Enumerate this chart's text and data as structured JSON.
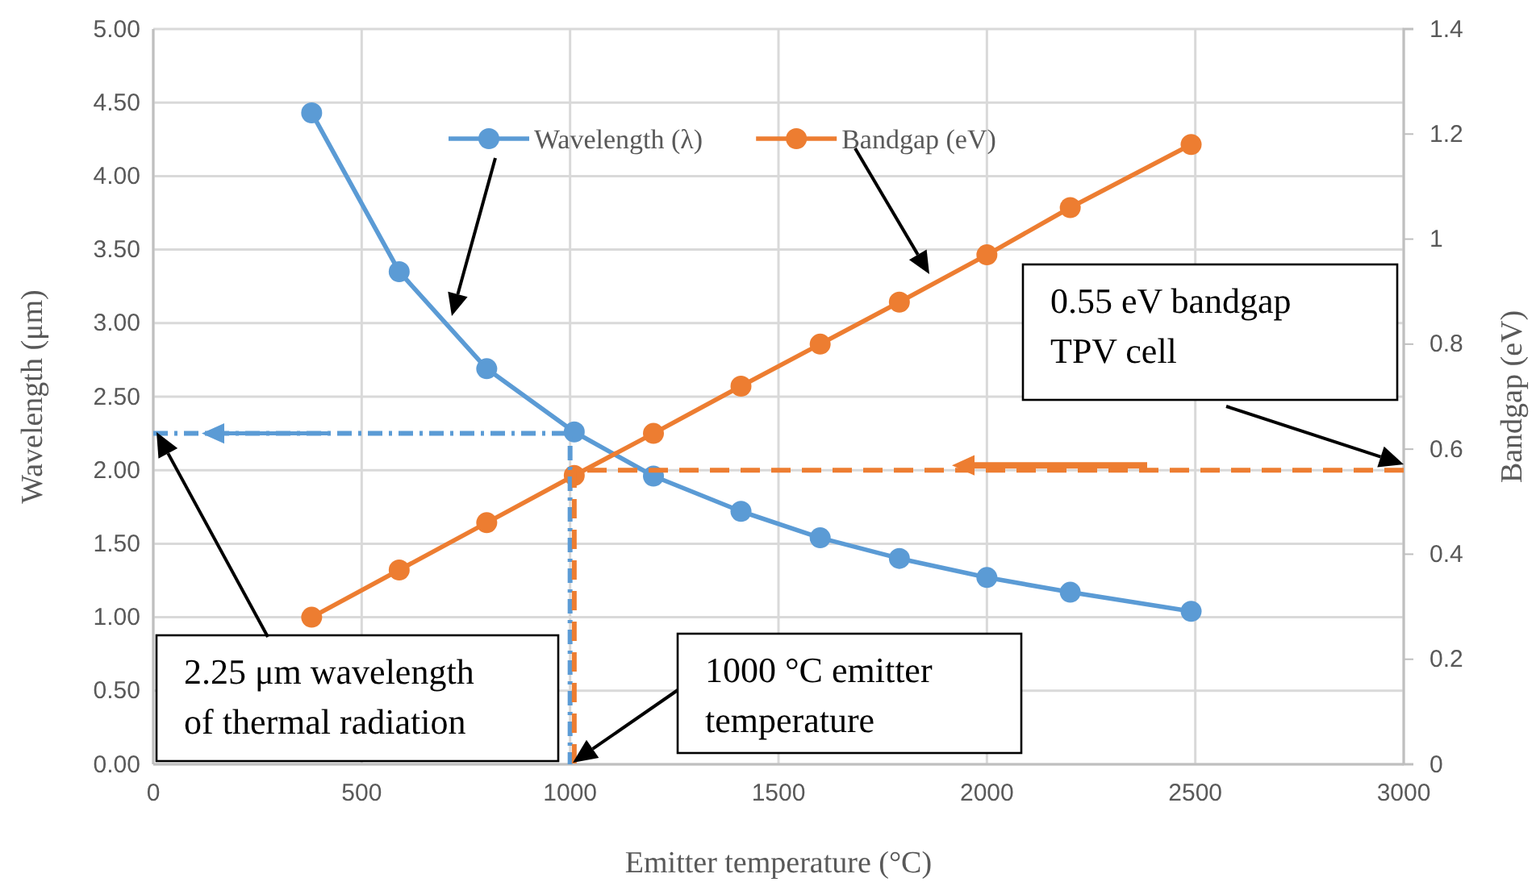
{
  "chart_data": {
    "type": "line",
    "xlabel": "Emitter temperature (°C)",
    "ylabel": "Wavelength (μm)",
    "y2label": "Bandgap (eV)",
    "x": [
      380,
      590,
      800,
      1010,
      1200,
      1410,
      1600,
      1790,
      2000,
      2200,
      2490
    ],
    "series": [
      {
        "name": "Wavelength (λ)",
        "color": "#5b9bd5",
        "values": [
          4.43,
          3.35,
          2.69,
          2.26,
          1.96,
          1.72,
          1.54,
          1.4,
          1.27,
          1.17,
          1.04
        ]
      },
      {
        "name": "Bandgap (eV)",
        "color": "#ed7d31",
        "axis": "y2",
        "values": [
          0.28,
          0.37,
          0.46,
          0.55,
          0.63,
          0.72,
          0.8,
          0.88,
          0.97,
          1.06,
          1.18
        ]
      },
      {
        "color": "#5b9bd5",
        "x": [
          0,
          1000,
          1000
        ],
        "values": [
          2.25,
          2.25,
          0
        ],
        "marker": "none",
        "line_style": "dotted"
      },
      {
        "color": "#ed7d31",
        "axis": "y2",
        "x": [
          3000,
          1010,
          1010
        ],
        "values": [
          0.56,
          0.56,
          0
        ],
        "marker": "none",
        "line_style": "dashed"
      }
    ],
    "xlim": [
      0,
      3000
    ],
    "xticks": [
      0,
      500,
      1000,
      1500,
      2000,
      2500,
      3000
    ],
    "ylim": [
      0,
      5
    ],
    "yticks": [
      {
        "value": 0,
        "label": "0.00"
      },
      {
        "value": 0.5,
        "label": "0.50"
      },
      {
        "value": 1,
        "label": "1.00"
      },
      {
        "value": 1.5,
        "label": "1.50"
      },
      {
        "value": 2,
        "label": "2.00"
      },
      {
        "value": 2.5,
        "label": "2.50"
      },
      {
        "value": 3,
        "label": "3.00"
      },
      {
        "value": 3.5,
        "label": "3.50"
      },
      {
        "value": 4,
        "label": "4.00"
      },
      {
        "value": 4.5,
        "label": "4.50"
      },
      {
        "value": 5,
        "label": "5.00"
      }
    ],
    "y2lim": [
      0,
      1.4
    ],
    "y2ticks": [
      0,
      0.2,
      0.4,
      0.6,
      0.8,
      1,
      1.2,
      1.4
    ],
    "grid": true,
    "legend": "top",
    "marker": "circle",
    "line_style": "solid",
    "annotations": [
      "2.25 μm wavelength\nof thermal radiation",
      "1000 °C emitter\ntemperature",
      "0.55 eV bandgap\nTPV cell"
    ]
  }
}
